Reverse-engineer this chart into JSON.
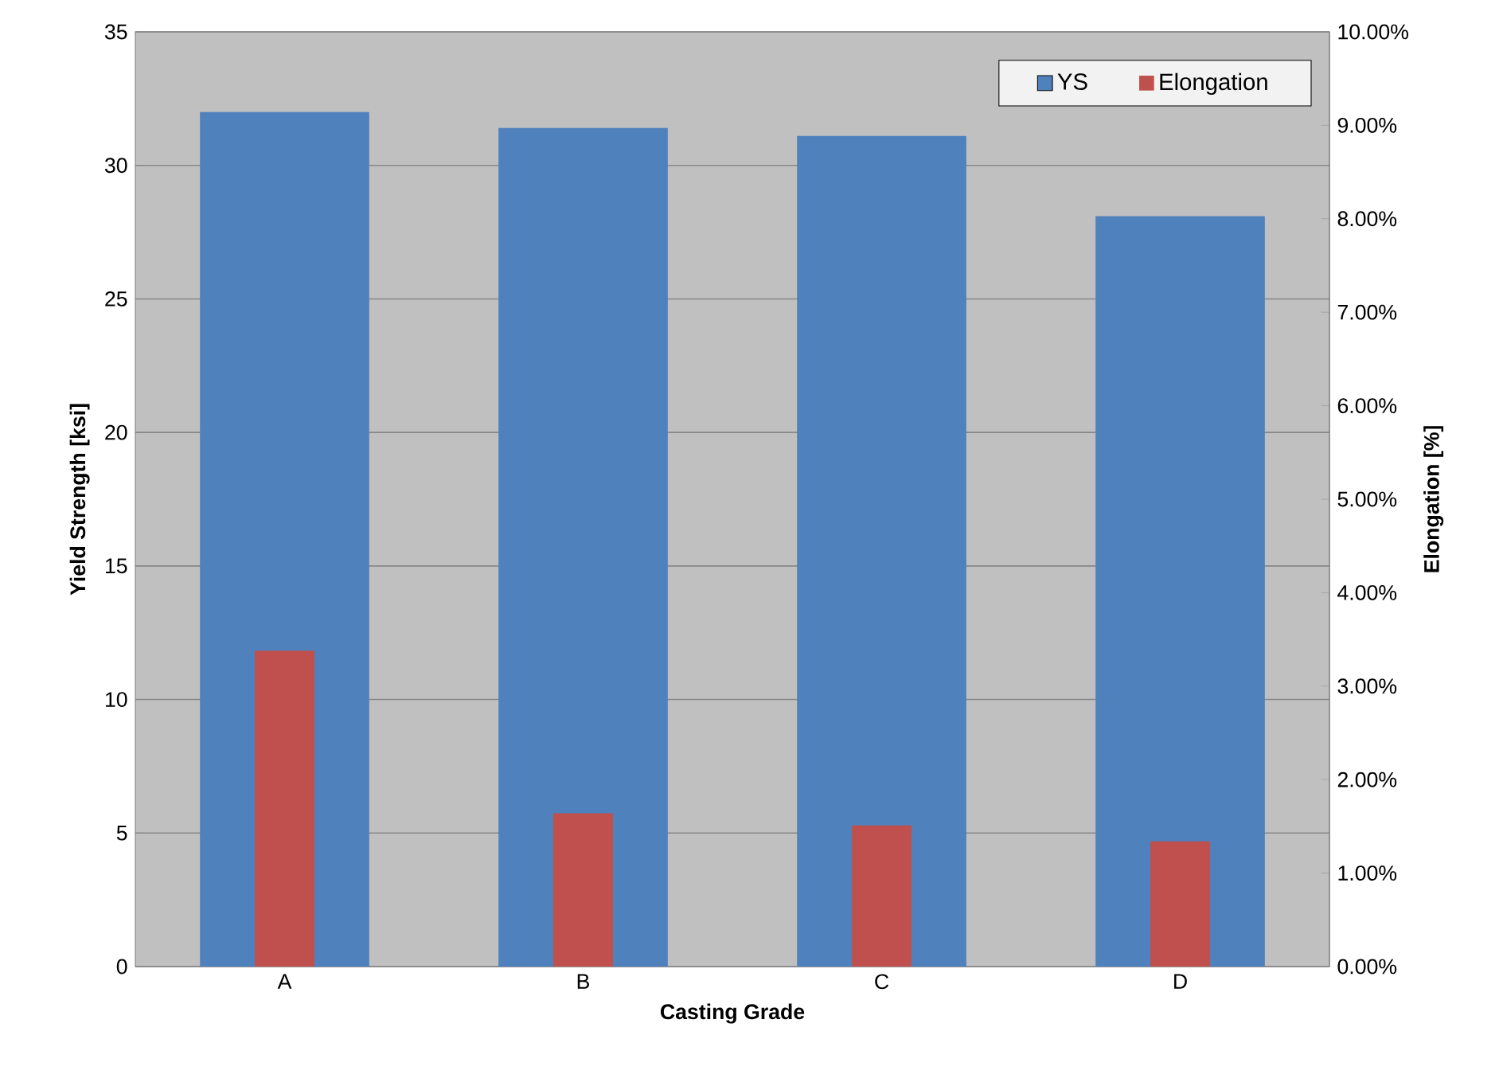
{
  "chart_data": {
    "type": "bar",
    "categories": [
      "A",
      "B",
      "C",
      "D"
    ],
    "xlabel": "Casting Grade",
    "ylabel": "Yield Strength [ksi]",
    "y2label": "Elongation [%]",
    "series": [
      {
        "name": "YS",
        "color": "#4f81bd",
        "values": [
          32.0,
          31.4,
          31.1,
          28.1
        ]
      },
      {
        "name": "Elongation",
        "color": "#c0504d",
        "axis": "y2",
        "values": [
          3.38,
          1.64,
          1.51,
          1.34
        ]
      }
    ],
    "ylim": [
      0,
      35
    ],
    "yticks": [
      0,
      5,
      10,
      15,
      20,
      25,
      30,
      35
    ],
    "y2lim": [
      0,
      10
    ],
    "y2ticks": [
      {
        "value": 0,
        "label": "0.00%"
      },
      {
        "value": 1,
        "label": "1.00%"
      },
      {
        "value": 2,
        "label": "2.00%"
      },
      {
        "value": 3,
        "label": "3.00%"
      },
      {
        "value": 4,
        "label": "4.00%"
      },
      {
        "value": 5,
        "label": "5.00%"
      },
      {
        "value": 6,
        "label": "6.00%"
      },
      {
        "value": 7,
        "label": "7.00%"
      },
      {
        "value": 8,
        "label": "8.00%"
      },
      {
        "value": 9,
        "label": "9.00%"
      },
      {
        "value": 10,
        "label": "10.00%"
      }
    ],
    "grid": "y",
    "legend": "top right"
  }
}
